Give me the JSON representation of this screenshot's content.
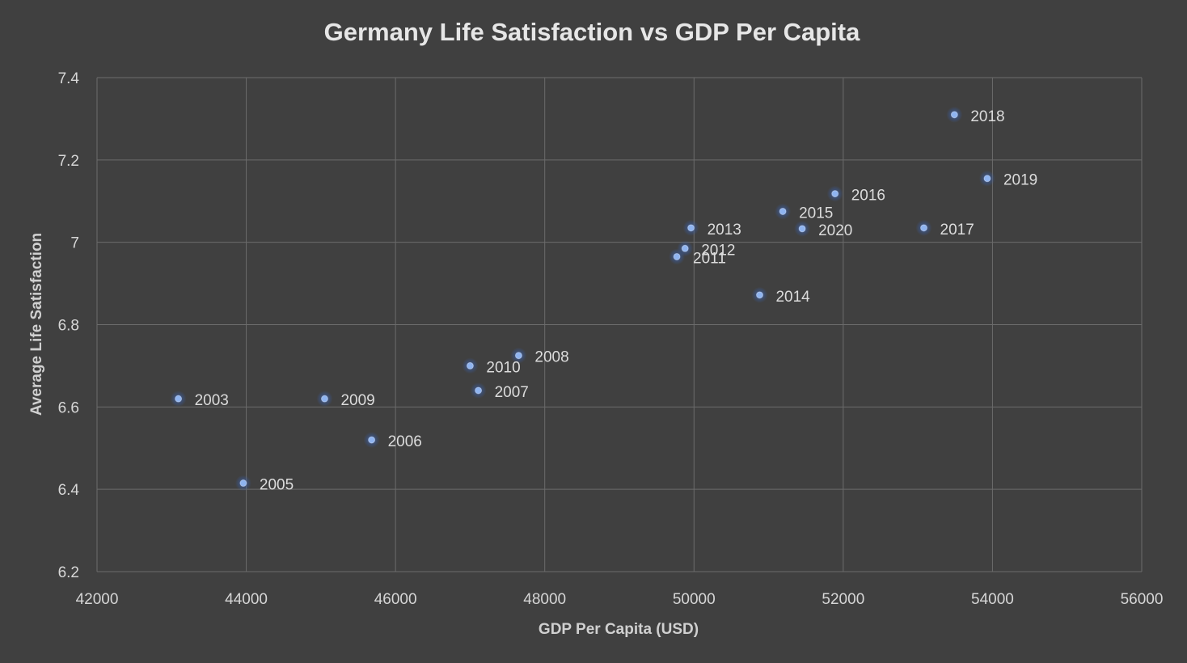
{
  "chart_data": {
    "type": "scatter",
    "title": "Germany Life Satisfaction vs GDP Per Capita",
    "xlabel": "GDP Per Capita (USD)",
    "ylabel": "Average Life Satisfaction",
    "xlim": [
      42000,
      56000
    ],
    "ylim": [
      6.2,
      7.4
    ],
    "x_ticks": [
      "42000",
      "44000",
      "46000",
      "48000",
      "50000",
      "52000",
      "54000",
      "56000"
    ],
    "y_ticks": [
      "6.2",
      "6.4",
      "6.6",
      "6.8",
      "7",
      "7.2",
      "7.4"
    ],
    "grid": true,
    "marker_color": "#8fb4f0",
    "marker_glow_color": "#3a5fa8",
    "background_color": "#404040",
    "points": [
      {
        "label": "2003",
        "x": 43090,
        "y": 6.62
      },
      {
        "label": "2005",
        "x": 43960,
        "y": 6.415
      },
      {
        "label": "2006",
        "x": 45680,
        "y": 6.52
      },
      {
        "label": "2007",
        "x": 47110,
        "y": 6.64
      },
      {
        "label": "2008",
        "x": 47650,
        "y": 6.725
      },
      {
        "label": "2009",
        "x": 45050,
        "y": 6.62
      },
      {
        "label": "2010",
        "x": 47000,
        "y": 6.7
      },
      {
        "label": "2011",
        "x": 49770,
        "y": 6.965
      },
      {
        "label": "2012",
        "x": 49880,
        "y": 6.985
      },
      {
        "label": "2013",
        "x": 49960,
        "y": 7.035
      },
      {
        "label": "2014",
        "x": 50880,
        "y": 6.872
      },
      {
        "label": "2015",
        "x": 51190,
        "y": 7.075
      },
      {
        "label": "2016",
        "x": 51890,
        "y": 7.118
      },
      {
        "label": "2017",
        "x": 53080,
        "y": 7.035
      },
      {
        "label": "2018",
        "x": 53490,
        "y": 7.31
      },
      {
        "label": "2019",
        "x": 53930,
        "y": 7.155
      },
      {
        "label": "2020",
        "x": 51450,
        "y": 7.033
      }
    ]
  }
}
